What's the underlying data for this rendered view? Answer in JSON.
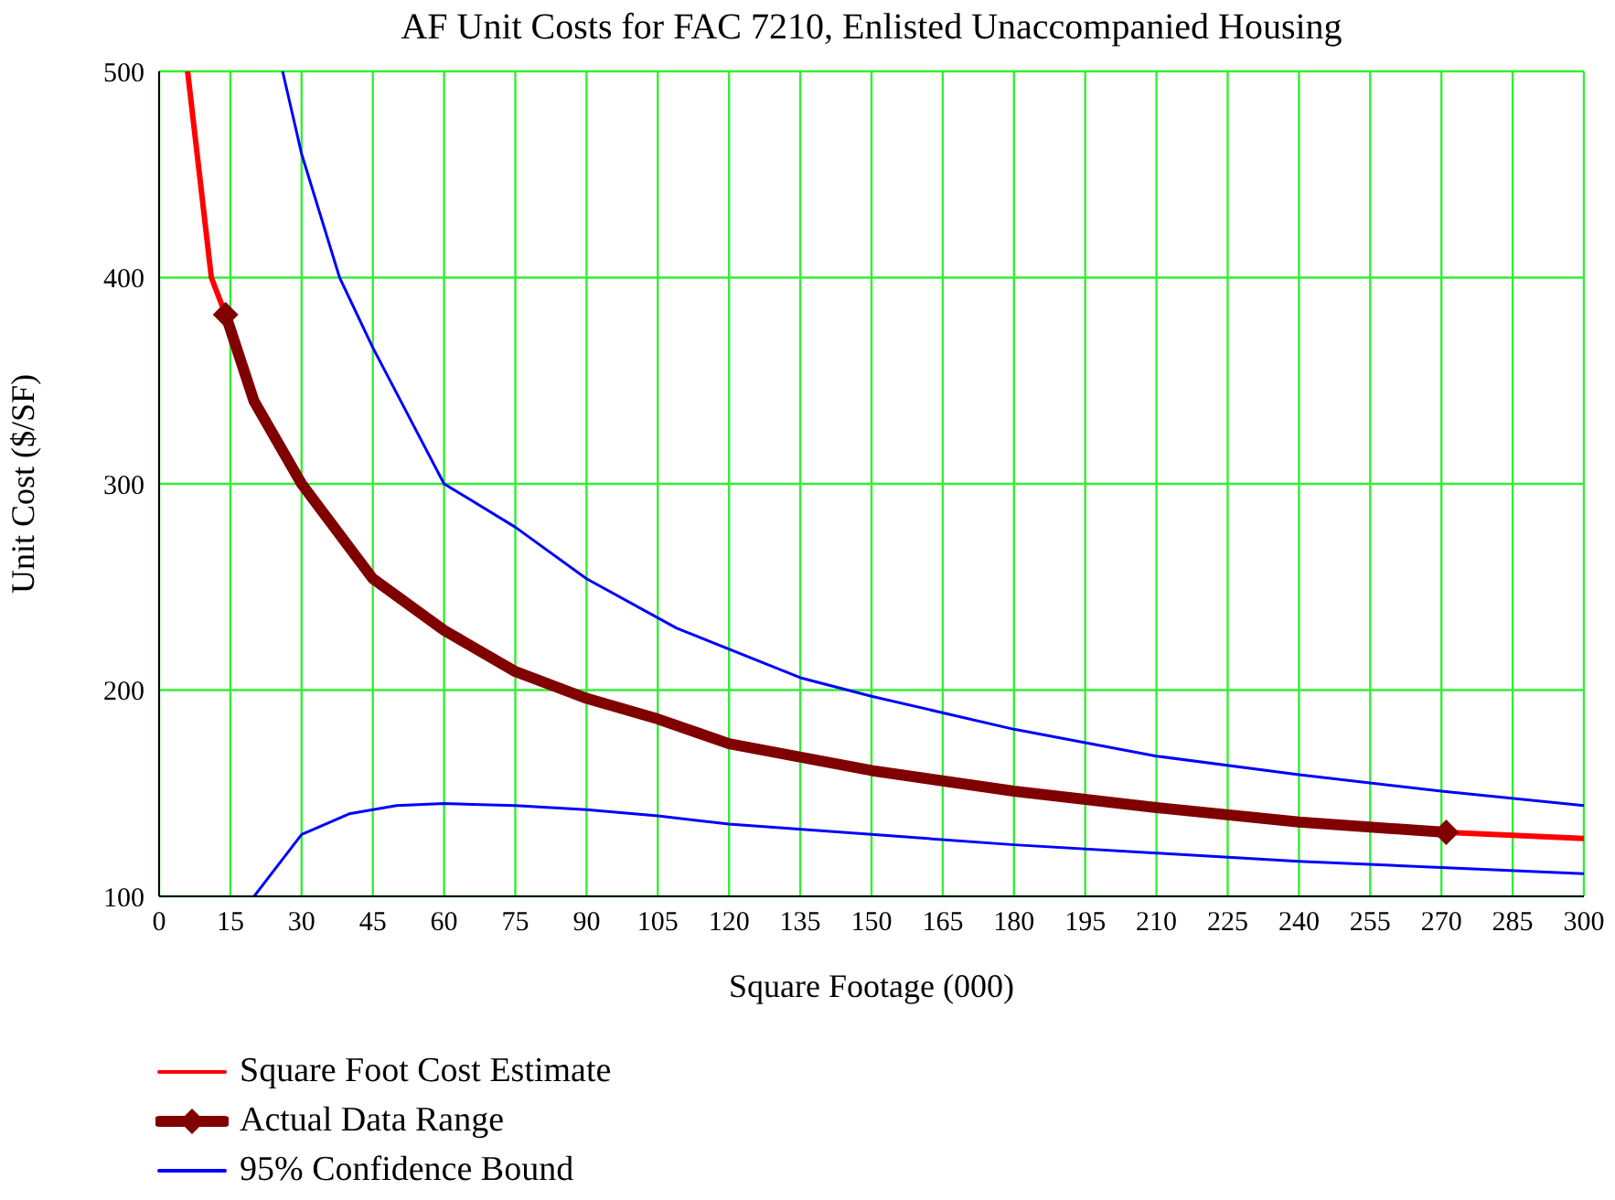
{
  "chart_data": {
    "type": "line",
    "title": "AF Unit Costs for FAC 7210, Enlisted Unaccompanied Housing",
    "xlabel": "Square Footage (000)",
    "ylabel": "Unit Cost ($/SF)",
    "xlim": [
      0,
      300
    ],
    "xticks": [
      0,
      15,
      30,
      45,
      60,
      75,
      90,
      105,
      120,
      135,
      150,
      165,
      180,
      195,
      210,
      225,
      240,
      255,
      270,
      285,
      300
    ],
    "ylim": [
      100,
      500
    ],
    "yticks": [
      100,
      200,
      300,
      400,
      500
    ],
    "grid": true,
    "legend": "bottom left",
    "series": [
      {
        "name": "Square Foot Cost Estimate",
        "color": "#ff0000",
        "x": [
          6,
          9,
          11,
          14,
          140,
          271,
          300
        ],
        "values": [
          500,
          440,
          400,
          382,
          null,
          131,
          128
        ]
      },
      {
        "name": "Actual Data Range",
        "color": "#800000",
        "x": [
          14,
          20,
          30,
          45,
          60,
          75,
          90,
          105,
          120,
          150,
          180,
          210,
          240,
          271
        ],
        "values": [
          382,
          340,
          300,
          254,
          229,
          209,
          196,
          186,
          174,
          161,
          151,
          143,
          136,
          131
        ]
      },
      {
        "type": "scatter",
        "color": "#800000",
        "marker": "diamond",
        "x": [
          14,
          271
        ],
        "values": [
          382,
          131
        ]
      },
      {
        "name": "95% Confidence Bound",
        "color": "#0000ff",
        "x": [
          26,
          30,
          38,
          45,
          60,
          75,
          90,
          109,
          135,
          150,
          180,
          210,
          240,
          270,
          300
        ],
        "values": [
          500,
          460,
          400,
          366,
          300,
          279,
          254,
          230,
          206,
          197,
          181,
          168,
          159,
          151,
          144
        ]
      },
      {
        "color": "#0000ff",
        "x": [
          20,
          25,
          30,
          40,
          50,
          60,
          75,
          90,
          105,
          120,
          150,
          180,
          210,
          240,
          270,
          300
        ],
        "values": [
          100,
          115,
          130,
          140,
          144,
          145,
          144,
          142,
          139,
          135,
          130,
          125,
          121,
          117,
          114,
          111
        ]
      }
    ]
  }
}
